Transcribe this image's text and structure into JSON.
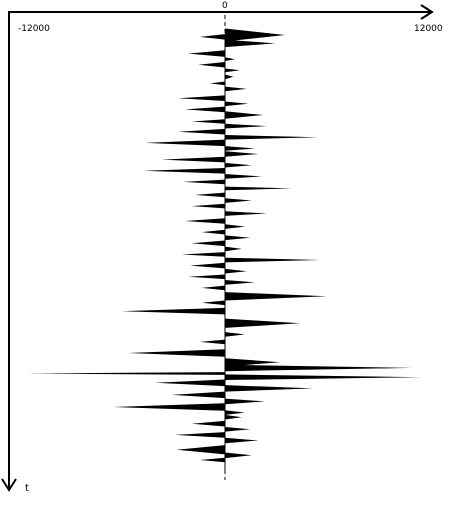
{
  "chart_data": {
    "type": "area",
    "orientation": "vertical",
    "title": "",
    "x_tick_labels": {
      "min": "-12000",
      "zero": "0",
      "max": "12000"
    },
    "xlim": [
      -12000,
      12000
    ],
    "ylabel": "t",
    "t_range": [
      0,
      471
    ],
    "grid": false,
    "colors": {
      "fill": "#000000",
      "axis": "#000000",
      "background": "#ffffff"
    },
    "series": [
      {
        "spikes": [
          {
            "t": 0,
            "a": 3600,
            "w": 14
          },
          {
            "t": 2,
            "a": -1500,
            "w": 6
          },
          {
            "t": 9,
            "a": 3000,
            "w": 8
          },
          {
            "t": 20,
            "a": -2200,
            "w": 7
          },
          {
            "t": 26,
            "a": 600,
            "w": 4
          },
          {
            "t": 32,
            "a": -1600,
            "w": 6
          },
          {
            "t": 38,
            "a": 900,
            "w": 4
          },
          {
            "t": 45,
            "a": 500,
            "w": 5
          },
          {
            "t": 52,
            "a": -900,
            "w": 4
          },
          {
            "t": 58,
            "a": 1300,
            "w": 5
          },
          {
            "t": 68,
            "a": -2800,
            "w": 6
          },
          {
            "t": 74,
            "a": 1400,
            "w": 5
          },
          {
            "t": 80,
            "a": -2400,
            "w": 6
          },
          {
            "t": 86,
            "a": 2300,
            "w": 8
          },
          {
            "t": 93,
            "a": -2000,
            "w": 5
          },
          {
            "t": 98,
            "a": 2500,
            "w": 5
          },
          {
            "t": 104,
            "a": -2800,
            "w": 6
          },
          {
            "t": 110,
            "a": 5600,
            "w": 5
          },
          {
            "t": 116,
            "a": -4800,
            "w": 7
          },
          {
            "t": 122,
            "a": 1800,
            "w": 5
          },
          {
            "t": 128,
            "a": 2000,
            "w": 6
          },
          {
            "t": 134,
            "a": -3800,
            "w": 6
          },
          {
            "t": 140,
            "a": 1600,
            "w": 5
          },
          {
            "t": 146,
            "a": -4900,
            "w": 6
          },
          {
            "t": 152,
            "a": 2200,
            "w": 5
          },
          {
            "t": 158,
            "a": -2500,
            "w": 5
          },
          {
            "t": 165,
            "a": 4000,
            "w": 4
          },
          {
            "t": 172,
            "a": -1800,
            "w": 5
          },
          {
            "t": 178,
            "a": 1600,
            "w": 5
          },
          {
            "t": 184,
            "a": -2000,
            "w": 5
          },
          {
            "t": 192,
            "a": 2500,
            "w": 5
          },
          {
            "t": 200,
            "a": -2400,
            "w": 6
          },
          {
            "t": 206,
            "a": 1200,
            "w": 5
          },
          {
            "t": 212,
            "a": -1400,
            "w": 5
          },
          {
            "t": 218,
            "a": 1500,
            "w": 5
          },
          {
            "t": 224,
            "a": -2000,
            "w": 6
          },
          {
            "t": 230,
            "a": 1000,
            "w": 5
          },
          {
            "t": 236,
            "a": -2600,
            "w": 5
          },
          {
            "t": 242,
            "a": 5700,
            "w": 5
          },
          {
            "t": 248,
            "a": -2100,
            "w": 6
          },
          {
            "t": 254,
            "a": 1300,
            "w": 5
          },
          {
            "t": 260,
            "a": -2200,
            "w": 5
          },
          {
            "t": 266,
            "a": 1800,
            "w": 5
          },
          {
            "t": 272,
            "a": -1400,
            "w": 5
          },
          {
            "t": 281,
            "a": 6100,
            "w": 9
          },
          {
            "t": 288,
            "a": -1400,
            "w": 5
          },
          {
            "t": 297,
            "a": -6200,
            "w": 7
          },
          {
            "t": 310,
            "a": 4500,
            "w": 10
          },
          {
            "t": 322,
            "a": 1200,
            "w": 5
          },
          {
            "t": 330,
            "a": -1500,
            "w": 5
          },
          {
            "t": 342,
            "a": -5800,
            "w": 8
          },
          {
            "t": 352,
            "a": 3300,
            "w": 9
          },
          {
            "t": 358,
            "a": 11200,
            "w": 7
          },
          {
            "t": 364,
            "a": -11900,
            "w": 3
          },
          {
            "t": 368,
            "a": 11800,
            "w": 6
          },
          {
            "t": 374,
            "a": -4200,
            "w": 7
          },
          {
            "t": 380,
            "a": 5300,
            "w": 7
          },
          {
            "t": 387,
            "a": -3200,
            "w": 7
          },
          {
            "t": 394,
            "a": 2400,
            "w": 6
          },
          {
            "t": 400,
            "a": -6700,
            "w": 8
          },
          {
            "t": 406,
            "a": 1200,
            "w": 5
          },
          {
            "t": 411,
            "a": 1000,
            "w": 5
          },
          {
            "t": 418,
            "a": -2000,
            "w": 6
          },
          {
            "t": 424,
            "a": 1500,
            "w": 5
          },
          {
            "t": 430,
            "a": -3000,
            "w": 6
          },
          {
            "t": 436,
            "a": 2000,
            "w": 6
          },
          {
            "t": 446,
            "a": -2900,
            "w": 10
          },
          {
            "t": 452,
            "a": 1600,
            "w": 6
          },
          {
            "t": 457,
            "a": -1500,
            "w": 5
          }
        ]
      }
    ]
  }
}
